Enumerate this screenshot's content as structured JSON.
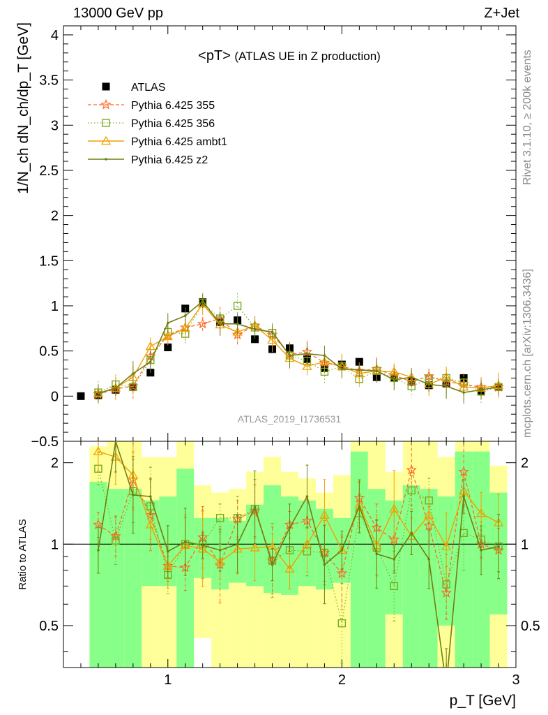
{
  "header": {
    "process_label": "13000 GeV pp",
    "channel_label": "Z+Jet"
  },
  "side_labels": {
    "rivet": "Rivet 3.1.10, ≥ 200k events",
    "mcplots": "mcplots.cern.ch [arXiv:1306.3436]"
  },
  "colors": {
    "atlas": "#000000",
    "p355": "#ff6622",
    "p356": "#7aaa22",
    "ambt1": "#f0a000",
    "z2": "#6f7f10",
    "band_outer": "#ffff99",
    "band_inner": "#88ff88"
  },
  "chart_data": [
    {
      "type": "scatter",
      "title": "<pT>",
      "subtitle": "(ATLAS UE in Z production)",
      "ylabel": "1/N_ch dN_ch/dp_T [GeV]",
      "xlabel": "",
      "watermark": "ATLAS_2019_I1736531",
      "xlim": [
        0.4,
        3.0
      ],
      "ylim": [
        -0.5,
        4.1
      ],
      "yticks": [
        "-0.5",
        "0",
        "0.5",
        "1",
        "1.5",
        "2",
        "2.5",
        "3",
        "3.5",
        "4"
      ],
      "legend_position": "top-left",
      "x": [
        0.5,
        0.6,
        0.7,
        0.8,
        0.9,
        1.0,
        1.1,
        1.2,
        1.3,
        1.4,
        1.5,
        1.6,
        1.7,
        1.8,
        1.9,
        2.0,
        2.1,
        2.2,
        2.3,
        2.4,
        2.5,
        2.6,
        2.7,
        2.8,
        2.9
      ],
      "series": [
        {
          "name": "ATLAS",
          "values": [
            0.0,
            0.01,
            0.07,
            0.1,
            0.26,
            0.54,
            0.97,
            1.04,
            0.82,
            0.84,
            0.63,
            0.52,
            0.53,
            0.41,
            0.31,
            0.35,
            0.38,
            0.21,
            0.2,
            0.16,
            0.12,
            0.14,
            0.2,
            0.06,
            0.1
          ]
        },
        {
          "name": "Pythia 6.425 355",
          "values": [
            null,
            0.02,
            0.08,
            0.11,
            0.44,
            0.67,
            0.76,
            0.8,
            0.86,
            0.68,
            0.78,
            0.68,
            0.46,
            0.49,
            0.37,
            0.33,
            0.28,
            0.3,
            0.23,
            0.16,
            0.22,
            0.16,
            0.13,
            0.1,
            0.1
          ]
        },
        {
          "name": "Pythia 6.425 356",
          "values": [
            null,
            0.04,
            0.13,
            0.1,
            0.4,
            0.71,
            0.69,
            1.03,
            0.86,
            1.0,
            0.76,
            0.7,
            0.45,
            0.39,
            0.27,
            0.33,
            0.19,
            0.28,
            0.2,
            0.11,
            0.19,
            0.2,
            0.15,
            0.05,
            0.1
          ]
        },
        {
          "name": "Pythia 6.425 ambt1",
          "values": [
            null,
            0.03,
            0.09,
            0.21,
            0.55,
            0.66,
            0.75,
            1.02,
            0.79,
            0.71,
            0.78,
            0.62,
            0.42,
            0.33,
            0.38,
            0.33,
            0.25,
            0.28,
            0.27,
            0.21,
            0.13,
            0.21,
            0.1,
            0.09,
            0.12
          ]
        },
        {
          "name": "Pythia 6.425 z2",
          "values": [
            null,
            0.03,
            0.09,
            0.25,
            0.38,
            0.81,
            0.89,
            1.05,
            0.8,
            0.8,
            0.74,
            0.71,
            0.45,
            0.47,
            0.45,
            0.3,
            0.29,
            0.28,
            0.18,
            0.21,
            0.13,
            0.11,
            0.04,
            0.07,
            0.1
          ]
        }
      ]
    },
    {
      "type": "line",
      "title": "",
      "xlabel": "p_T [GeV]",
      "ylabel": "Ratio to ATLAS",
      "xlim": [
        0.4,
        3.0
      ],
      "ylim": [
        0.35,
        2.4
      ],
      "log_y": true,
      "xticks": [
        "1",
        "2",
        "3"
      ],
      "yticks": [
        "0.5",
        "1",
        "2"
      ],
      "reference_line": 1,
      "x": [
        0.6,
        0.7,
        0.8,
        0.9,
        1.0,
        1.1,
        1.2,
        1.3,
        1.4,
        1.5,
        1.6,
        1.7,
        1.8,
        1.9,
        2.0,
        2.1,
        2.2,
        2.3,
        2.4,
        2.5,
        2.6,
        2.7,
        2.8,
        2.9
      ],
      "bands": {
        "outer_high": [
          2.3,
          2.4,
          2.4,
          2.1,
          2.1,
          2.4,
          1.65,
          1.55,
          1.6,
          1.85,
          2.1,
          1.85,
          1.75,
          1.55,
          1.8,
          2.4,
          2.4,
          1.85,
          2.4,
          2.4,
          2.1,
          2.4,
          2.4,
          1.95
        ],
        "outer_low": [
          0.35,
          0.35,
          0.35,
          0.35,
          0.35,
          0.35,
          0.45,
          0.35,
          0.35,
          0.35,
          0.35,
          0.35,
          0.35,
          0.35,
          0.35,
          0.35,
          0.35,
          0.35,
          0.35,
          0.35,
          0.35,
          0.35,
          0.35,
          0.35
        ],
        "inner_high": [
          1.7,
          1.6,
          1.6,
          1.45,
          1.5,
          1.9,
          1.25,
          1.25,
          1.22,
          1.4,
          1.65,
          1.5,
          1.45,
          1.35,
          1.25,
          2.2,
          1.6,
          1.45,
          1.65,
          1.6,
          1.5,
          2.2,
          2.2,
          1.55
        ],
        "inner_low": [
          0.35,
          0.35,
          0.35,
          0.7,
          0.7,
          0.35,
          0.75,
          0.68,
          0.72,
          0.7,
          0.66,
          0.65,
          0.7,
          0.68,
          0.72,
          0.35,
          0.35,
          0.55,
          0.35,
          0.35,
          0.5,
          0.35,
          0.35,
          0.55
        ]
      },
      "series": [
        {
          "name": "Pythia 6.425 355",
          "values": [
            1.18,
            1.07,
            1.73,
            1.28,
            0.83,
            0.82,
            1.06,
            0.84,
            1.24,
            1.33,
            0.87,
            1.18,
            1.22,
            0.93,
            0.78,
            1.48,
            1.15,
            1.04,
            1.88,
            1.17,
            0.66,
            1.85,
            1.0,
            0.95
          ]
        },
        {
          "name": "Pythia 6.425 356",
          "values": [
            1.9,
            1.03,
            1.57,
            1.38,
            0.77,
            1.0,
            1.0,
            1.25,
            1.25,
            1.35,
            0.87,
            0.95,
            0.94,
            0.93,
            0.51,
            1.3,
            0.97,
            0.7,
            1.58,
            1.45,
            0.71,
            1.1,
            1.04,
            0.98
          ]
        },
        {
          "name": "Pythia 6.425 ambt1",
          "values": [
            2.2,
            2.1,
            1.8,
            1.18,
            0.83,
            0.99,
            0.96,
            0.86,
            0.96,
            0.97,
            0.98,
            0.81,
            1.0,
            1.28,
            0.95,
            1.4,
            0.99,
            1.35,
            1.07,
            1.28,
            0.98,
            1.57,
            1.3,
            1.2
          ]
        },
        {
          "name": "Pythia 6.425 z2",
          "values": [
            0.95,
            2.4,
            1.52,
            1.5,
            0.94,
            1.02,
            0.99,
            0.95,
            1.0,
            1.37,
            0.84,
            1.15,
            1.5,
            0.84,
            0.95,
            1.38,
            0.92,
            0.88,
            1.1,
            0.88,
            0.3,
            1.5,
            0.95,
            0.98
          ]
        }
      ]
    }
  ]
}
